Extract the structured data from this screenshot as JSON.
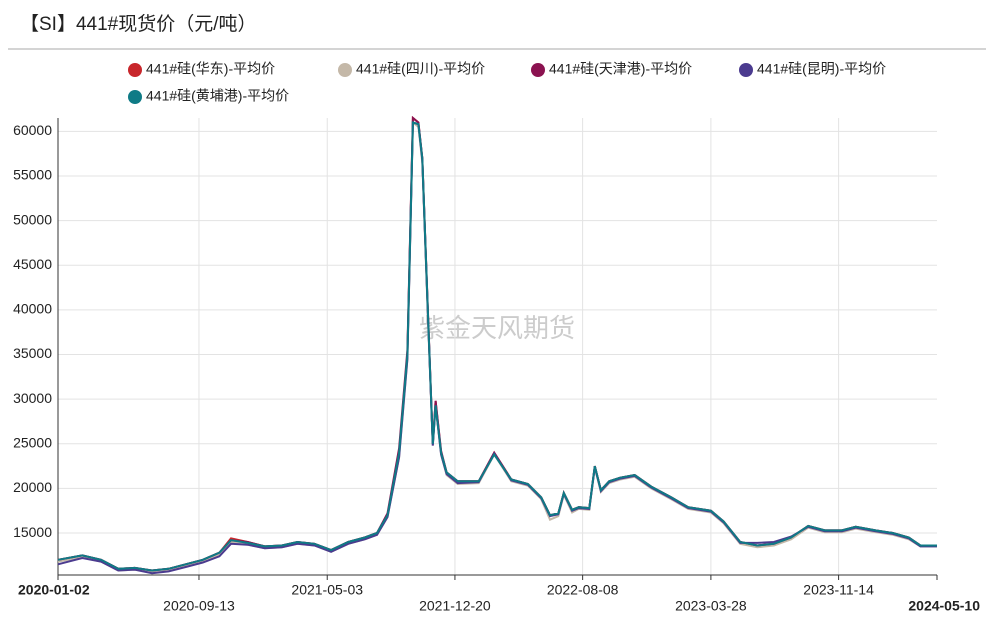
{
  "chart_data": {
    "type": "line",
    "title": "【SI】441#现货价（元/吨）",
    "watermark": "紫金天风期货",
    "x": [
      "2020-01-02",
      "2020-02-15",
      "2020-03-20",
      "2020-04-20",
      "2020-05-20",
      "2020-06-20",
      "2020-07-20",
      "2020-08-20",
      "2020-09-20",
      "2020-10-20",
      "2020-11-10",
      "2020-12-10",
      "2021-01-10",
      "2021-02-10",
      "2021-03-10",
      "2021-04-10",
      "2021-05-10",
      "2021-06-10",
      "2021-07-10",
      "2021-08-01",
      "2021-08-20",
      "2021-09-10",
      "2021-09-25",
      "2021-10-05",
      "2021-10-15",
      "2021-10-22",
      "2021-11-01",
      "2021-11-10",
      "2021-11-15",
      "2021-11-25",
      "2021-12-05",
      "2021-12-25",
      "2022-02-01",
      "2022-03-01",
      "2022-04-01",
      "2022-05-01",
      "2022-05-25",
      "2022-06-10",
      "2022-06-25",
      "2022-07-05",
      "2022-07-20",
      "2022-08-01",
      "2022-08-20",
      "2022-08-30",
      "2022-09-10",
      "2022-09-25",
      "2022-10-15",
      "2022-11-10",
      "2022-12-10",
      "2023-01-15",
      "2023-02-15",
      "2023-03-28",
      "2023-04-20",
      "2023-05-20",
      "2023-06-20",
      "2023-07-20",
      "2023-08-20",
      "2023-09-20",
      "2023-10-20",
      "2023-11-20",
      "2023-12-15",
      "2024-01-20",
      "2024-02-20",
      "2024-03-20",
      "2024-04-10",
      "2024-05-10"
    ],
    "xlim": [
      "2020-01-02",
      "2024-05-10"
    ],
    "xticks": [
      "2020-01-02",
      "2020-09-13",
      "2021-05-03",
      "2021-12-20",
      "2022-08-08",
      "2023-03-28",
      "2023-11-14",
      "2024-05-10"
    ],
    "ylim": [
      10300,
      61500
    ],
    "yticks": [
      15000,
      20000,
      25000,
      30000,
      35000,
      40000,
      45000,
      50000,
      55000,
      60000
    ],
    "grid": true,
    "series": [
      {
        "name": "441#硅(华东)-平均价",
        "color": "#c8262b",
        "values": [
          12000,
          12500,
          12000,
          11000,
          11100,
          10800,
          11000,
          11500,
          12000,
          12800,
          14400,
          14000,
          13500,
          13600,
          14000,
          13800,
          13100,
          14000,
          14500,
          15000,
          17000,
          24000,
          35000,
          61500,
          61000,
          57000,
          40000,
          25000,
          29800,
          24000,
          21800,
          20800,
          20800,
          24000,
          21000,
          20500,
          19000,
          17000,
          17200,
          19500,
          17600,
          17900,
          17800,
          22500,
          19800,
          20800,
          21200,
          21500,
          20200,
          19000,
          17900,
          17500,
          16300,
          14000,
          13600,
          13800,
          14500,
          15800,
          15300,
          15300,
          15700,
          15300,
          15000,
          14500,
          13600,
          13600
        ]
      },
      {
        "name": "441#硅(四川)-平均价",
        "color": "#c4b8a8",
        "values": [
          11800,
          12300,
          11800,
          10800,
          10900,
          10600,
          10800,
          11300,
          11800,
          12600,
          14000,
          13700,
          13300,
          13400,
          13800,
          13600,
          12900,
          13800,
          14300,
          14800,
          16800,
          23500,
          34500,
          61000,
          60500,
          56500,
          39500,
          24800,
          29300,
          23800,
          21500,
          20500,
          20600,
          23800,
          20800,
          20300,
          18800,
          16500,
          16900,
          19300,
          17300,
          17700,
          17600,
          22300,
          19600,
          20600,
          21000,
          21300,
          20000,
          18800,
          17700,
          17300,
          16100,
          13800,
          13400,
          13600,
          14300,
          15600,
          15100,
          15100,
          15500,
          15100,
          14800,
          14300,
          13500,
          13500
        ]
      },
      {
        "name": "441#硅(天津港)-平均价",
        "color": "#8b1250",
        "values": [
          12000,
          12500,
          12000,
          11000,
          11100,
          10800,
          11000,
          11500,
          12000,
          12800,
          14200,
          14000,
          13500,
          13600,
          14000,
          13800,
          13100,
          14000,
          14500,
          15000,
          17200,
          24500,
          35500,
          61500,
          61000,
          57000,
          40200,
          25000,
          29800,
          24200,
          21800,
          20800,
          20800,
          24000,
          21000,
          20500,
          19000,
          17000,
          17200,
          19500,
          17600,
          17900,
          17800,
          22500,
          19800,
          20800,
          21200,
          21500,
          20200,
          19000,
          17900,
          17500,
          16300,
          14000,
          13600,
          13800,
          14500,
          15800,
          15300,
          15300,
          15700,
          15300,
          15000,
          14500,
          13600,
          13600
        ]
      },
      {
        "name": "441#硅(昆明)-平均价",
        "color": "#4b3b8f",
        "values": [
          11500,
          12200,
          11800,
          10800,
          10900,
          10500,
          10700,
          11200,
          11700,
          12400,
          13800,
          13700,
          13300,
          13400,
          13800,
          13600,
          12900,
          13800,
          14300,
          14800,
          16800,
          23500,
          34500,
          61000,
          60800,
          56800,
          39800,
          24800,
          29300,
          23800,
          21600,
          20600,
          20700,
          23900,
          20900,
          20400,
          18900,
          16900,
          17100,
          19400,
          17500,
          17800,
          17700,
          22400,
          19700,
          20700,
          21100,
          21400,
          20100,
          18900,
          17800,
          17400,
          16200,
          13900,
          13900,
          14000,
          14600,
          15700,
          15200,
          15200,
          15600,
          15200,
          14900,
          14400,
          13500,
          13500
        ]
      },
      {
        "name": "441#硅(黄埔港)-平均价",
        "color": "#0f7b86",
        "values": [
          12000,
          12500,
          12000,
          11000,
          11100,
          10800,
          11000,
          11500,
          12000,
          12800,
          14200,
          13900,
          13500,
          13600,
          14000,
          13800,
          13100,
          14000,
          14500,
          15000,
          17000,
          24000,
          35000,
          61000,
          60800,
          57000,
          40000,
          25000,
          29300,
          24000,
          21800,
          20800,
          20800,
          23800,
          21000,
          20500,
          19000,
          17000,
          17200,
          19500,
          17600,
          17900,
          17800,
          22500,
          19800,
          20800,
          21200,
          21500,
          20200,
          19000,
          17900,
          17500,
          16300,
          14000,
          13600,
          13800,
          14500,
          15800,
          15300,
          15300,
          15700,
          15300,
          15000,
          14500,
          13600,
          13600
        ]
      }
    ]
  }
}
